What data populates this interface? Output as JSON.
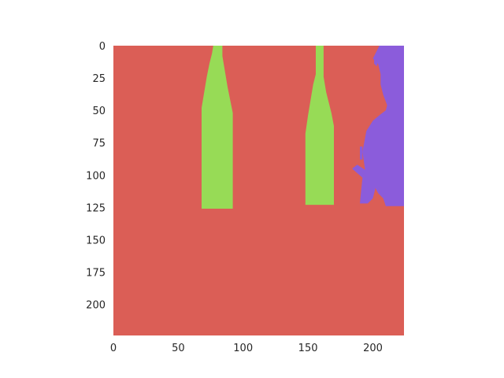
{
  "chart_data": {
    "type": "heatmap",
    "title": "",
    "xlabel": "",
    "ylabel": "",
    "xlim": [
      0,
      224
    ],
    "ylim": [
      224,
      0
    ],
    "grid": false,
    "xticks": [
      0,
      50,
      100,
      150,
      200
    ],
    "yticks": [
      0,
      25,
      50,
      75,
      100,
      125,
      150,
      175,
      200
    ],
    "xtick_labels": [
      "0",
      "50",
      "100",
      "150",
      "200"
    ],
    "ytick_labels": [
      "0",
      "25",
      "50",
      "75",
      "100",
      "125",
      "150",
      "175",
      "200"
    ],
    "colors": {
      "background": "#DB5E56",
      "bottles": "#97DB56",
      "figure": "#8B5CDB"
    },
    "regions": [
      {
        "class": "bottles",
        "outline": [
          [
            77,
            0
          ],
          [
            84,
            0
          ],
          [
            84,
            8
          ],
          [
            86,
            20
          ],
          [
            88,
            32
          ],
          [
            90,
            42
          ],
          [
            92,
            52
          ],
          [
            92,
            126
          ],
          [
            68,
            126
          ],
          [
            68,
            70
          ],
          [
            68,
            48
          ],
          [
            70,
            36
          ],
          [
            72,
            24
          ],
          [
            74,
            14
          ],
          [
            76,
            6
          ],
          [
            77,
            0
          ]
        ]
      },
      {
        "class": "bottles",
        "outline": [
          [
            156,
            0
          ],
          [
            162,
            0
          ],
          [
            162,
            24
          ],
          [
            164,
            36
          ],
          [
            166,
            44
          ],
          [
            168,
            52
          ],
          [
            170,
            62
          ],
          [
            170,
            123
          ],
          [
            148,
            123
          ],
          [
            148,
            68
          ],
          [
            150,
            54
          ],
          [
            152,
            42
          ],
          [
            154,
            30
          ],
          [
            156,
            22
          ],
          [
            156,
            0
          ]
        ]
      },
      {
        "class": "figure",
        "outline": [
          [
            205,
            0
          ],
          [
            224,
            0
          ],
          [
            224,
            124
          ],
          [
            210,
            124
          ],
          [
            208,
            118
          ],
          [
            204,
            114
          ],
          [
            202,
            110
          ],
          [
            200,
            118
          ],
          [
            196,
            122
          ],
          [
            190,
            122
          ],
          [
            191,
            112
          ],
          [
            192,
            102
          ],
          [
            184,
            95
          ],
          [
            188,
            92
          ],
          [
            194,
            96
          ],
          [
            192,
            82
          ],
          [
            195,
            66
          ],
          [
            200,
            58
          ],
          [
            206,
            53
          ],
          [
            210,
            50
          ],
          [
            211,
            46
          ],
          [
            208,
            38
          ],
          [
            206,
            30
          ],
          [
            206,
            22
          ],
          [
            204,
            14
          ],
          [
            200,
            10
          ],
          [
            203,
            4
          ],
          [
            205,
            0
          ]
        ]
      },
      {
        "class": "figure",
        "outline": [
          [
            190,
            78
          ],
          [
            192,
            78
          ],
          [
            192,
            88
          ],
          [
            190,
            88
          ],
          [
            190,
            78
          ]
        ]
      },
      {
        "class": "figure",
        "outline": [
          [
            201,
            10
          ],
          [
            204,
            12
          ],
          [
            203,
            16
          ],
          [
            201,
            14
          ],
          [
            201,
            10
          ]
        ]
      }
    ]
  }
}
